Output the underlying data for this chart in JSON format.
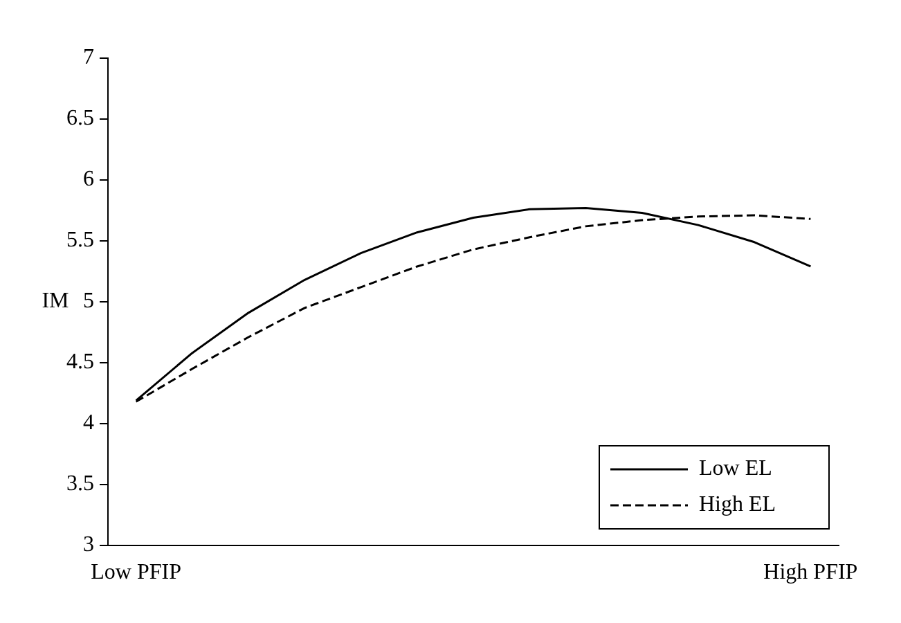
{
  "chart_data": {
    "type": "line",
    "ylabel": "IM",
    "categories": [
      "Low PFIP",
      null,
      null,
      null,
      null,
      null,
      null,
      null,
      null,
      null,
      null,
      null,
      "High PFIP"
    ],
    "series": [
      {
        "name": "Low EL",
        "color": "#000000",
        "line_style": "solid",
        "values": [
          4.19,
          4.58,
          4.91,
          5.18,
          5.4,
          5.57,
          5.69,
          5.76,
          5.77,
          5.73,
          5.63,
          5.49,
          5.29
        ]
      },
      {
        "name": "High EL",
        "color": "#000000",
        "line_style": "dashed",
        "values": [
          4.18,
          4.45,
          4.71,
          4.95,
          5.12,
          5.29,
          5.43,
          5.53,
          5.62,
          5.67,
          5.7,
          5.71,
          5.68
        ]
      }
    ],
    "ylim": [
      3,
      7
    ],
    "yticks": [
      3,
      3.5,
      4,
      4.5,
      5,
      5.5,
      6,
      6.5,
      7
    ],
    "grid": false,
    "legend": "bottom right",
    "marker": "none"
  }
}
